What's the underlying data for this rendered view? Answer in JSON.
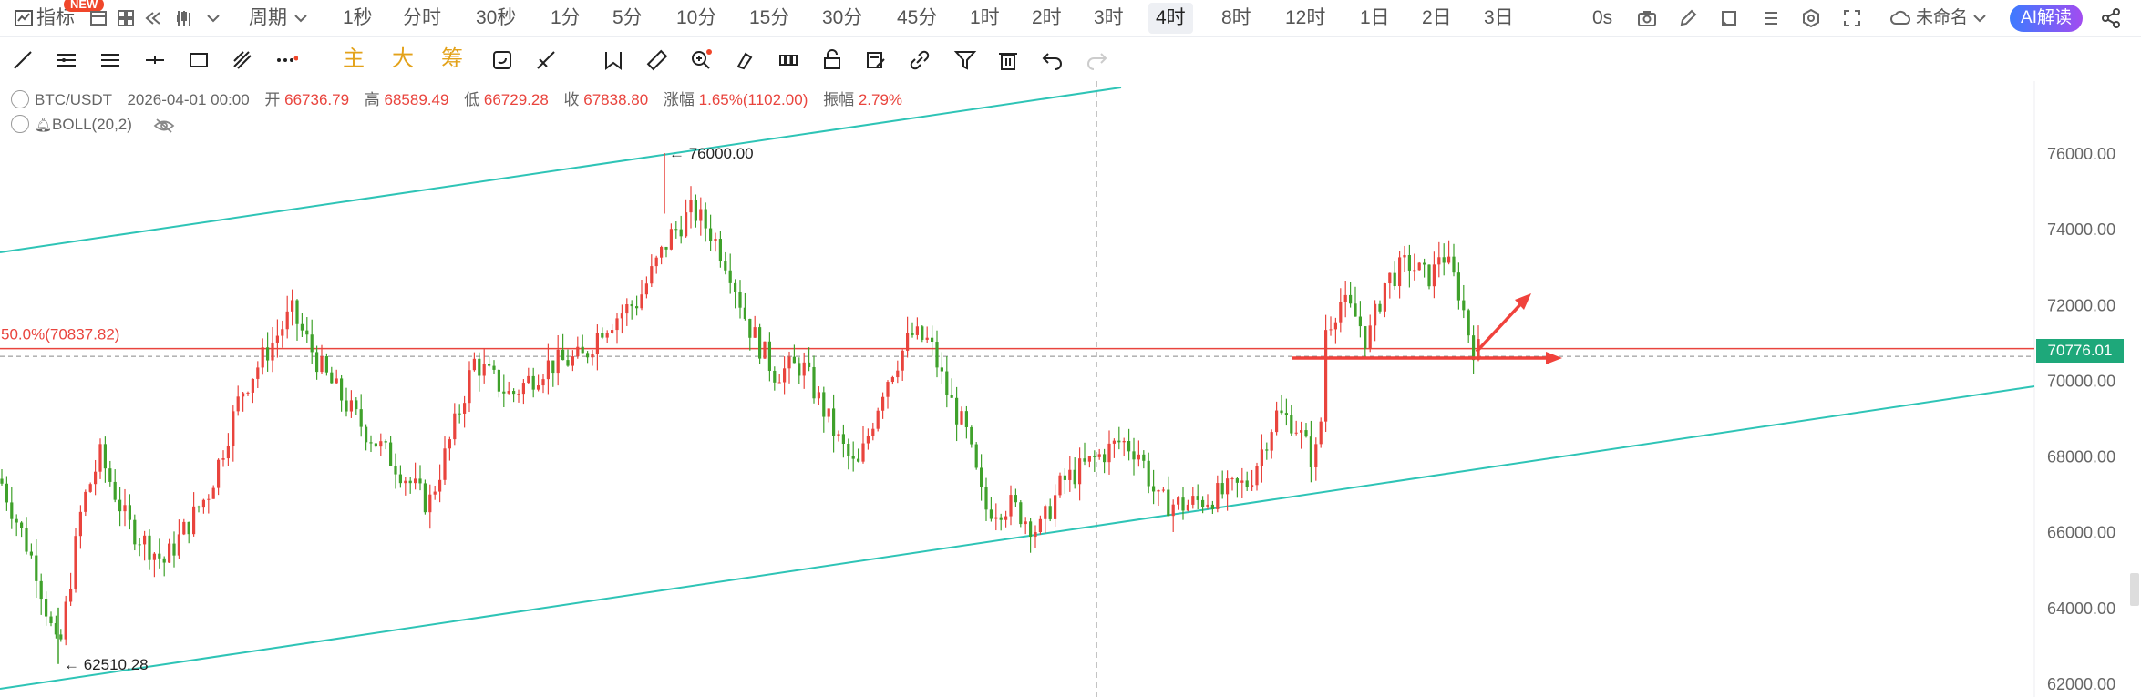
{
  "topbar": {
    "indicators_label": "指标",
    "new_badge": "NEW",
    "period_label": "周期",
    "intervals": [
      "1秒",
      "分时",
      "30秒",
      "1分",
      "5分",
      "10分",
      "15分",
      "30分",
      "45分",
      "1时",
      "2时",
      "3时",
      "4时",
      "8时",
      "12时",
      "1日",
      "2日",
      "3日"
    ],
    "active_interval": "4时",
    "countdown": "0s",
    "layout_name": "未命名",
    "ai_button": "AI解读"
  },
  "toolbar": {
    "chart_type_labels": [
      "主",
      "大",
      "筹"
    ]
  },
  "info": {
    "symbol": "BTC/USDT",
    "datetime": "2026-04-01 00:00",
    "open_label": "开",
    "open": "66736.79",
    "high_label": "高",
    "high": "68589.49",
    "low_label": "低",
    "low": "66729.28",
    "close_label": "收",
    "close": "67838.80",
    "change_label": "涨幅",
    "change": "1.65%(1102.00)",
    "amp_label": "振幅",
    "amp": "2.79%",
    "indicator": "BOLL(20,2)"
  },
  "chart_data": {
    "type": "candlestick",
    "ylim": [
      61800,
      77500
    ],
    "y_ticks": [
      "76000.00",
      "74000.00",
      "72000.00",
      "70000.00",
      "68000.00",
      "66000.00",
      "64000.00",
      "62000.00"
    ],
    "y_tick_values": [
      76000,
      74000,
      72000,
      70000,
      68000,
      66000,
      64000,
      62000
    ],
    "current_price": "70776.01",
    "current_price_value": 70776.01,
    "fib_label": "50.0%(70837.82)",
    "fib_value": 70837.82,
    "high_label": "← 76000.00",
    "low_label": "← 62510.28",
    "colors": {
      "up": "#e9443d",
      "down": "#3fa12b",
      "channel": "#2ec4b6",
      "arrow": "#f0423c",
      "price_tag": "#1ea87a"
    }
  }
}
